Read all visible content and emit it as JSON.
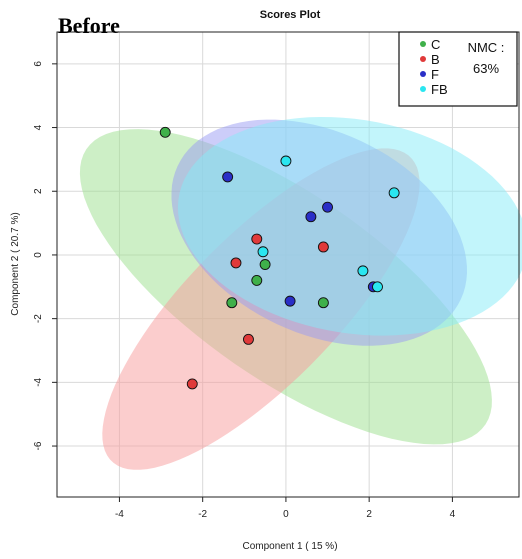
{
  "overlay_label": "Before",
  "chart_data": {
    "type": "scatter",
    "title": "Scores Plot",
    "xlabel": "Component 1 ( 15 %)",
    "ylabel": "Component 2 ( 20.7 %)",
    "xlim": [
      -5.5,
      5.6
    ],
    "ylim": [
      -7.6,
      7.0
    ],
    "x_ticks": [
      -4,
      -2,
      0,
      2,
      4
    ],
    "y_ticks": [
      -6,
      -4,
      -2,
      0,
      2,
      4,
      6
    ],
    "grid": true,
    "legend_position": "top-right",
    "annotation": [
      "NMC :",
      "63%"
    ],
    "series": [
      {
        "name": "C",
        "color": "#3fb04a",
        "ellipse_color": "#9be08e",
        "points": [
          [
            -2.9,
            3.85
          ],
          [
            -0.5,
            -0.3
          ],
          [
            -0.7,
            -0.8
          ],
          [
            -1.3,
            -1.5
          ],
          [
            0.9,
            -1.5
          ]
        ],
        "ellipse": {
          "center": [
            0.0,
            -1.0
          ],
          "semi_axes": [
            6.5,
            2.6
          ],
          "angle_deg": -45
        }
      },
      {
        "name": "B",
        "color": "#e03a3a",
        "ellipse_color": "#f79c9c",
        "points": [
          [
            -2.25,
            -4.05
          ],
          [
            -0.9,
            -2.65
          ],
          [
            -1.2,
            -0.25
          ],
          [
            -0.7,
            0.5
          ],
          [
            0.9,
            0.25
          ]
        ],
        "ellipse": {
          "center": [
            -0.6,
            -1.7
          ],
          "semi_axes": [
            6.0,
            2.0
          ],
          "angle_deg": 55
        }
      },
      {
        "name": "F",
        "color": "#2a2fc7",
        "ellipse_color": "#9a9cf3",
        "points": [
          [
            -1.4,
            2.45
          ],
          [
            0.6,
            1.2
          ],
          [
            1.0,
            1.5
          ],
          [
            0.1,
            -1.45
          ],
          [
            2.1,
            -1.0
          ]
        ],
        "ellipse": {
          "center": [
            0.8,
            0.7
          ],
          "semi_axes": [
            4.1,
            2.9
          ],
          "angle_deg": -45
        }
      },
      {
        "name": "FB",
        "color": "#2ae6f0",
        "ellipse_color": "#86ecf7",
        "points": [
          [
            0.0,
            2.95
          ],
          [
            2.6,
            1.95
          ],
          [
            -0.55,
            0.1
          ],
          [
            1.85,
            -0.5
          ],
          [
            2.2,
            -1.0
          ]
        ],
        "ellipse": {
          "center": [
            1.6,
            0.9
          ],
          "semi_axes": [
            4.3,
            3.3
          ],
          "angle_deg": -20
        }
      }
    ]
  }
}
